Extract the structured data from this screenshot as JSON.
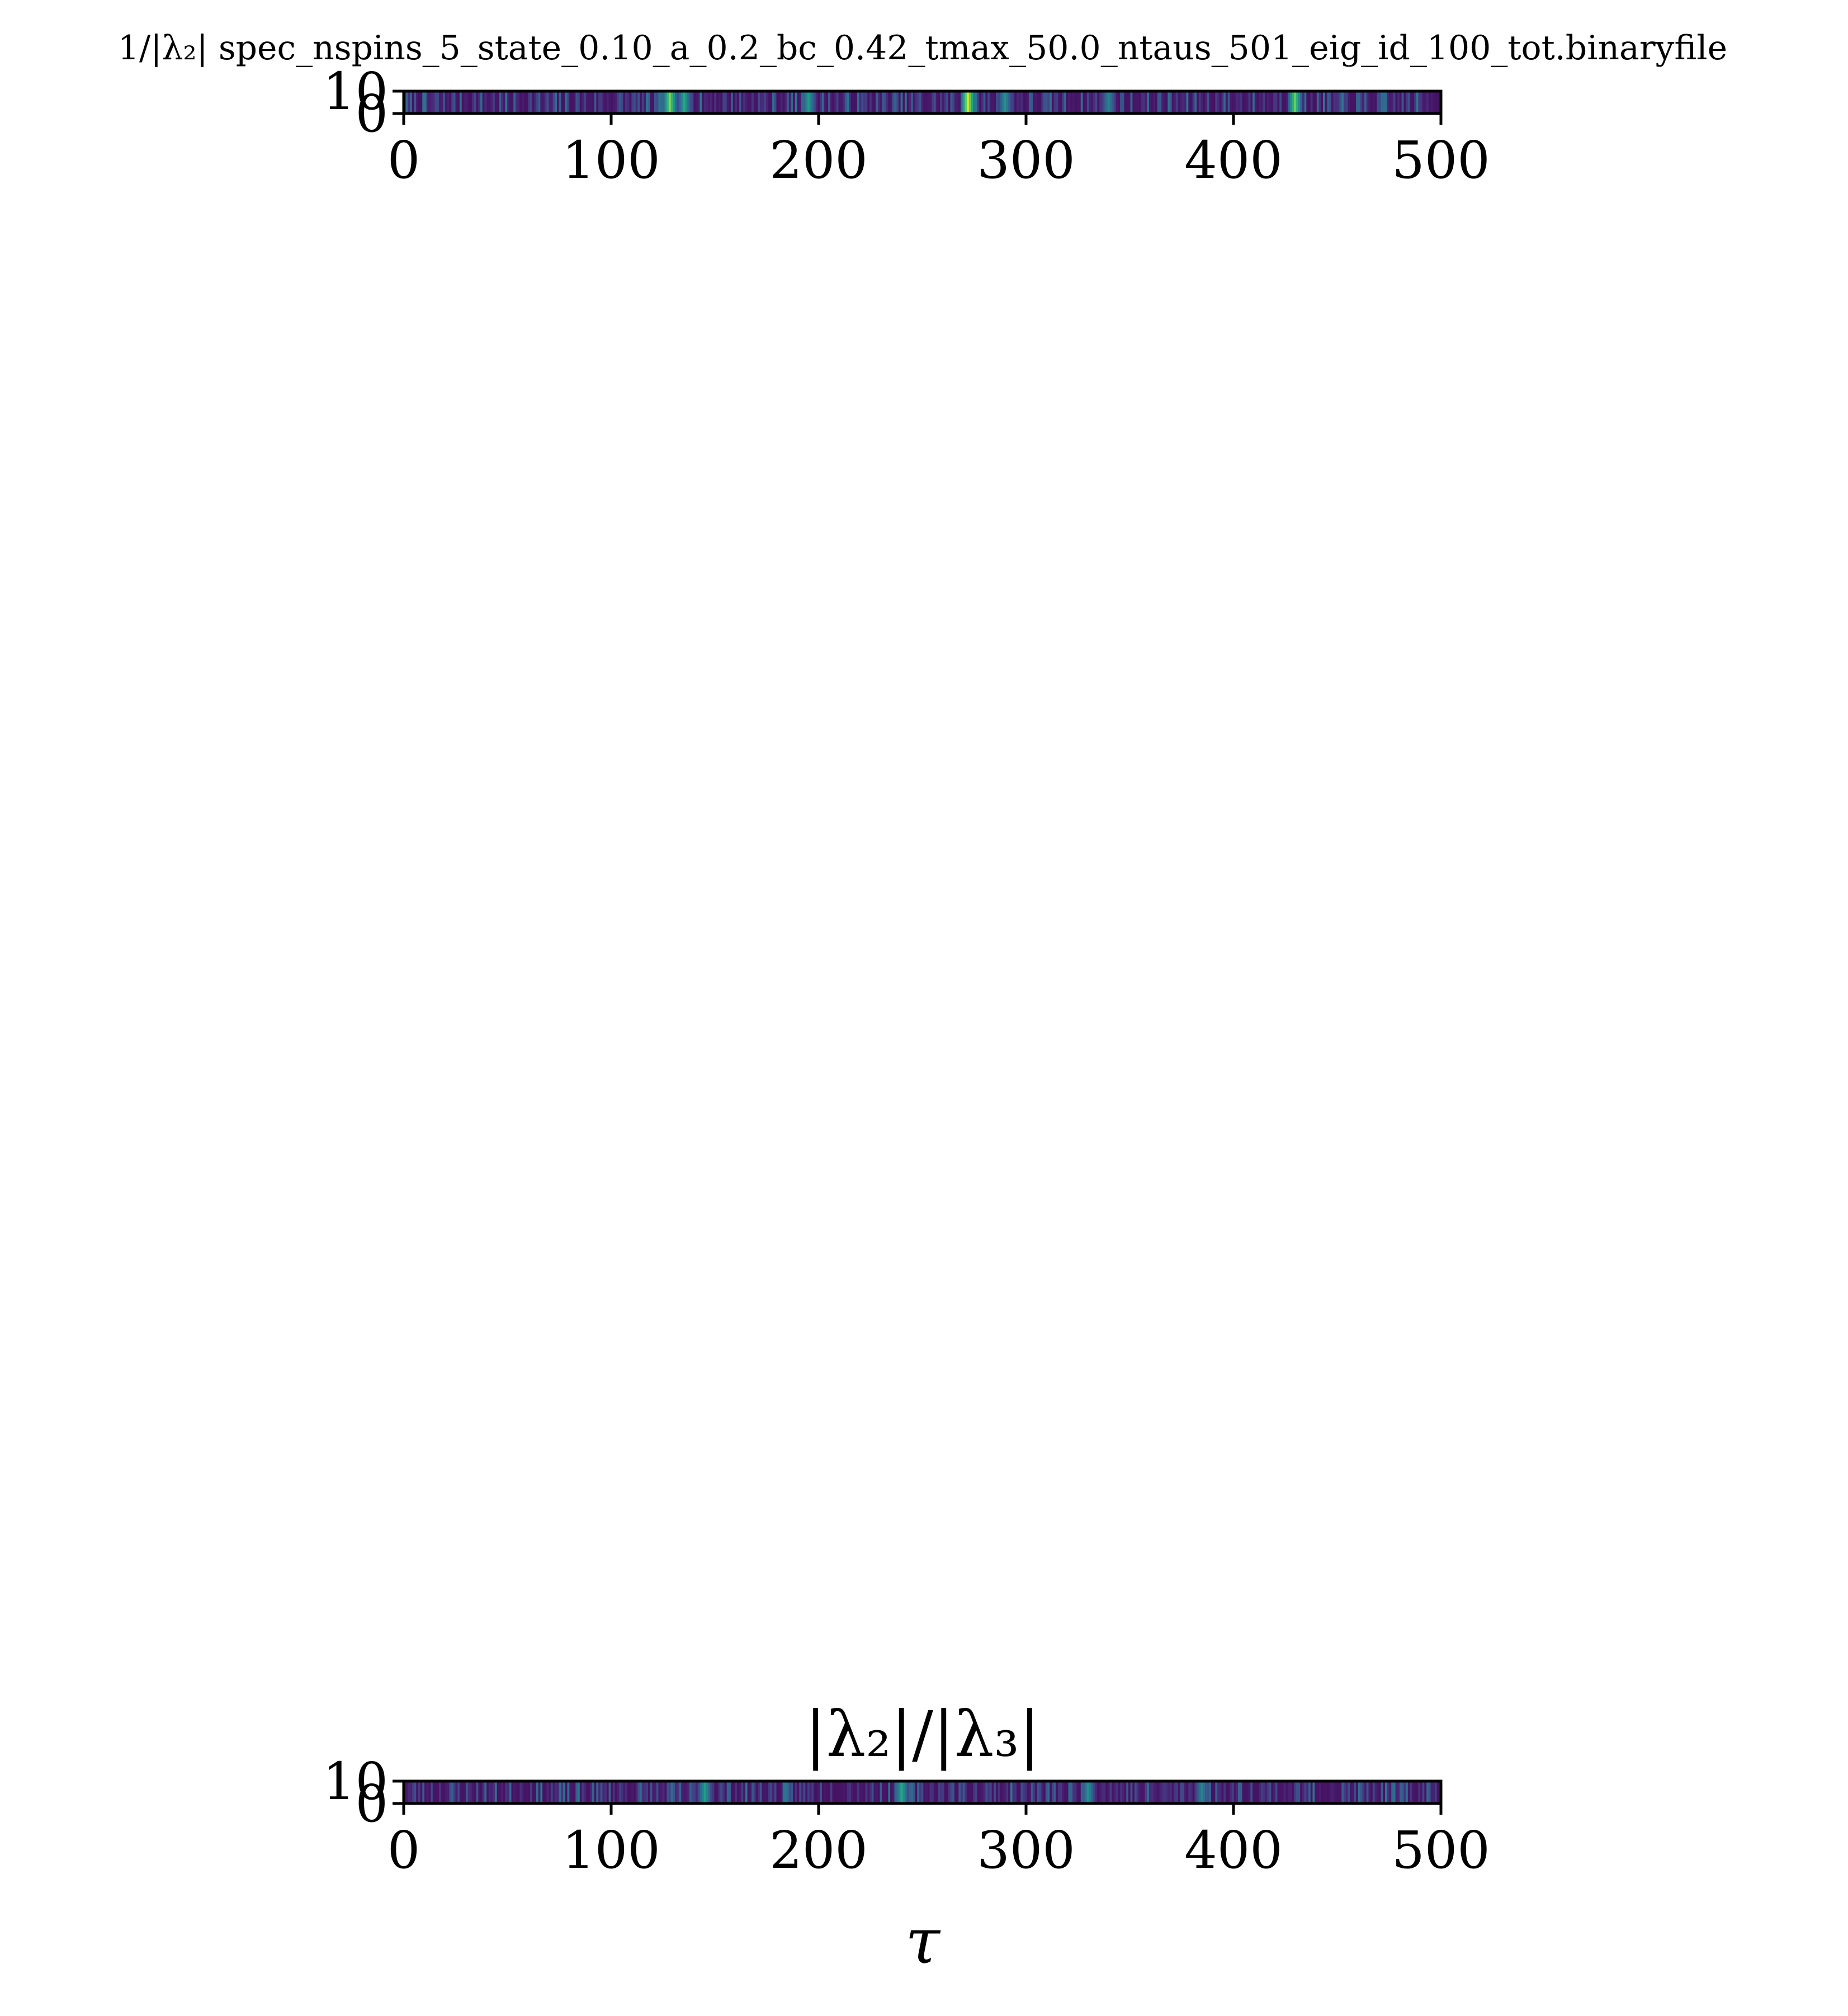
{
  "chart_data": [
    {
      "type": "heatmap",
      "title": "1/|λ₂| spec_nspins_5_state_0.10_a_0.2_bc_0.42_tmax_50.0_ntaus_501_eig_id_100_tot.binaryfile",
      "xlabel": "",
      "ylabel": "",
      "xlim": [
        0,
        500
      ],
      "ylim": [
        0,
        10
      ],
      "x_ticks": [
        "0",
        "100",
        "200",
        "300",
        "400",
        "500"
      ],
      "y_ticks": [
        "0",
        "10"
      ],
      "colormap": "viridis",
      "profile_seed": 7,
      "hot_spots": [
        {
          "x": 128,
          "value": 0.82
        },
        {
          "x": 135,
          "value": 0.6
        },
        {
          "x": 195,
          "value": 0.55
        },
        {
          "x": 272,
          "value": 0.95
        },
        {
          "x": 290,
          "value": 0.5
        },
        {
          "x": 340,
          "value": 0.45
        },
        {
          "x": 430,
          "value": 0.78
        }
      ]
    },
    {
      "type": "heatmap",
      "title": "|λ₂|/|λ₃|",
      "xlabel": "τ",
      "ylabel": "",
      "xlim": [
        0,
        500
      ],
      "ylim": [
        0,
        10
      ],
      "x_ticks": [
        "0",
        "100",
        "200",
        "300",
        "400",
        "500"
      ],
      "y_ticks": [
        "0",
        "10"
      ],
      "colormap": "viridis",
      "profile_seed": 23,
      "hot_spots": [
        {
          "x": 145,
          "value": 0.55
        },
        {
          "x": 240,
          "value": 0.6
        },
        {
          "x": 330,
          "value": 0.5
        },
        {
          "x": 385,
          "value": 0.45
        }
      ]
    }
  ]
}
